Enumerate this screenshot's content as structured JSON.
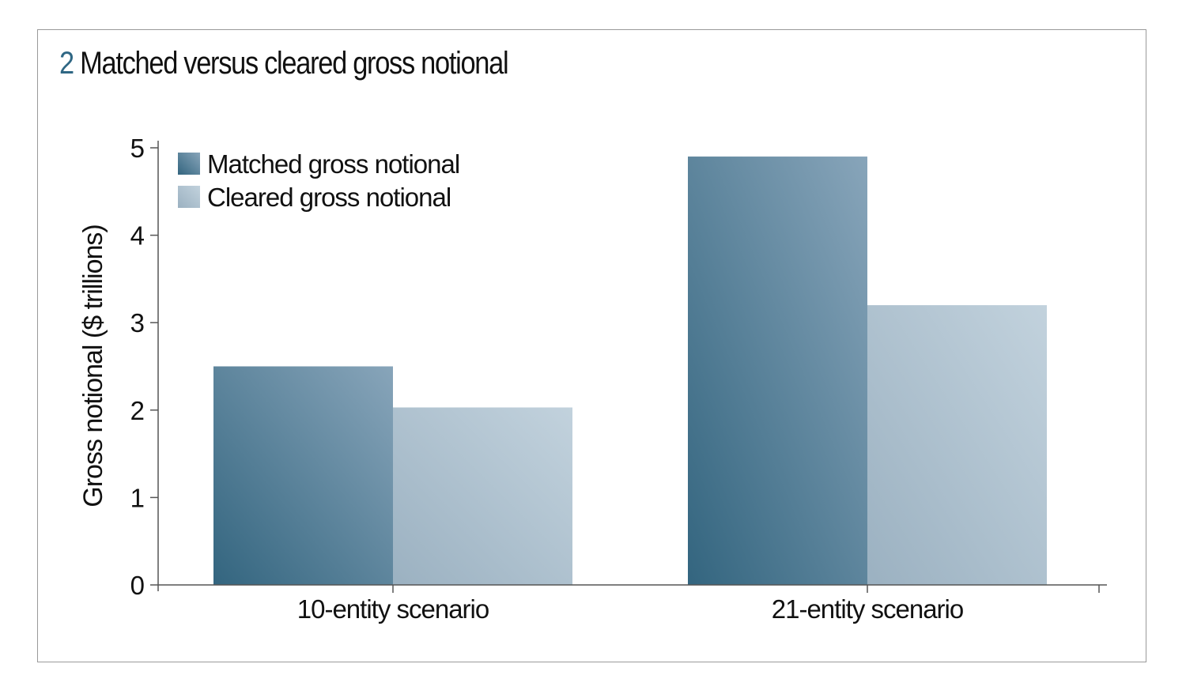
{
  "title": {
    "number": "2",
    "text": "Matched versus cleared gross notional"
  },
  "chart_data": {
    "type": "bar",
    "title": "Matched versus cleared gross notional",
    "xlabel": "",
    "ylabel": "Gross notional ($ trillions)",
    "ylim": [
      0,
      5
    ],
    "yticks": [
      "0",
      "1",
      "2",
      "3",
      "4",
      "5"
    ],
    "categories": [
      "10-entity scenario",
      "21-entity scenario"
    ],
    "series": [
      {
        "name": "Matched gross notional",
        "values": [
          2.5,
          4.9
        ],
        "color": "#4a7896"
      },
      {
        "name": "Cleared gross notional",
        "values": [
          2.03,
          3.2
        ],
        "color": "#adc0ce"
      }
    ],
    "legend": "top-left",
    "grid": false
  }
}
